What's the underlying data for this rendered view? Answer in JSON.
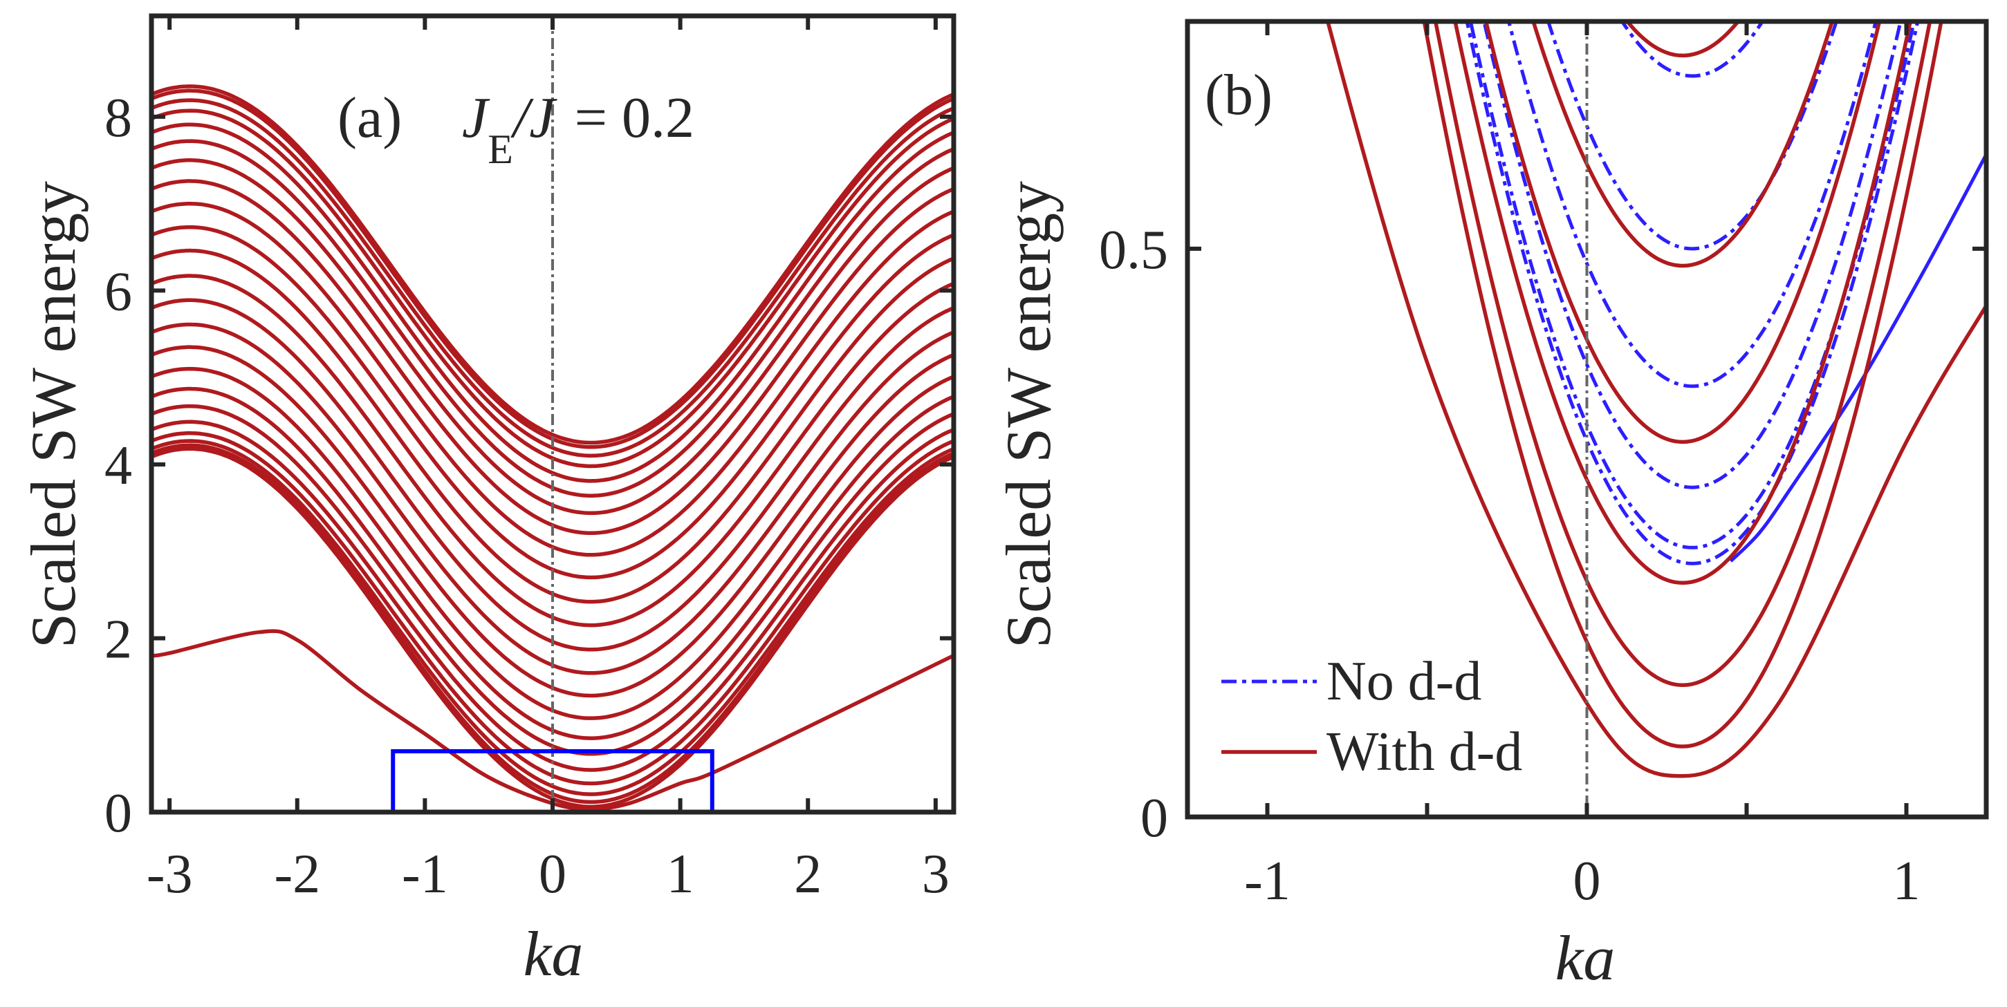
{
  "colors": {
    "with_dd": "#B01A1E",
    "no_dd": "#2B1FFF",
    "zoom_box": "#0000FF",
    "reference_line": "#666666",
    "axes": "#262626"
  },
  "chart_data": [
    {
      "type": "line",
      "panel_label": "(a)",
      "annotation": {
        "symbol": "J",
        "subscript": "E",
        "divider": "/J",
        "value": "= 0.2"
      },
      "xlabel": "ka",
      "ylabel": "Scaled SW energy",
      "xlim": [
        -3.1416,
        3.1416
      ],
      "ylim": [
        0,
        9.16
      ],
      "xticks": [
        -3,
        -2,
        -1,
        0,
        1,
        2,
        3
      ],
      "xtick_labels": [
        "-3",
        "-2",
        "-1",
        "0",
        "1",
        "2",
        "3"
      ],
      "yticks": [
        0,
        2,
        4,
        6,
        8
      ],
      "ytick_labels": [
        "0",
        "2",
        "4",
        "6",
        "8"
      ],
      "reference_line_k": 0,
      "zoom_box": {
        "k": [
          -1.25,
          1.25
        ],
        "energy": [
          0,
          0.7
        ]
      },
      "series": [
        {
          "name": "With d-d",
          "style": "solid",
          "model": "cosine band between min and max energy",
          "k_at_min": 0.3,
          "band_min_energy": [
            4.25,
            4.2,
            4.1,
            3.98,
            3.81,
            3.64,
            3.44,
            3.21,
            2.96,
            2.7,
            2.42,
            2.15,
            1.87,
            1.6,
            1.34,
            1.08,
            0.85,
            0.67,
            0.485,
            0.33,
            0.206,
            0.116,
            0.062
          ],
          "band_max_energy": [
            8.35,
            8.3,
            8.19,
            8.07,
            7.91,
            7.72,
            7.5,
            7.26,
            7.0,
            6.73,
            6.46,
            6.17,
            5.89,
            5.61,
            5.35,
            5.1,
            4.87,
            4.67,
            4.49,
            4.36,
            4.27,
            4.22,
            4.18
          ],
          "lower_band": [
            [
              -3.1416,
              1.8
            ],
            [
              -3,
              1.83
            ],
            [
              -2.3,
              2.07
            ],
            [
              -2,
              1.98
            ],
            [
              -1.5,
              1.4
            ],
            [
              -1,
              0.9
            ],
            [
              -0.5,
              0.4
            ],
            [
              0,
              0.1
            ],
            [
              0.3,
              0.036
            ],
            [
              0.6,
              0.1
            ],
            [
              1,
              0.33
            ],
            [
              1.25,
              0.45
            ],
            [
              2,
              0.98
            ],
            [
              3,
              1.7
            ],
            [
              3.1416,
              1.8
            ]
          ]
        }
      ]
    },
    {
      "type": "line",
      "panel_label": "(b)",
      "xlabel": "ka",
      "ylabel": "Scaled SW energy",
      "xlim": [
        -1.25,
        1.25
      ],
      "ylim": [
        0,
        0.7
      ],
      "xticks": [
        -1,
        -0.5,
        0,
        0.5,
        1
      ],
      "xtick_labels": [
        "-1",
        "",
        "0",
        "",
        "1"
      ],
      "yticks": [
        0,
        0.5
      ],
      "ytick_labels": [
        "0",
        "0.5"
      ],
      "reference_line_k": 0,
      "legend": {
        "placement": "bottom-left",
        "entries": [
          "No d-d",
          "With d-d"
        ]
      },
      "series": [
        {
          "name": "No d-d",
          "style": "dash-dot",
          "model": "cosine band between min and max energy",
          "k_at_min": 0.33,
          "band_min_energy": [
            0.223,
            0.237,
            0.29,
            0.379,
            0.5,
            0.652,
            0.82,
            1.0
          ],
          "band_max_energy": [
            4.22,
            4.24,
            4.29,
            4.38,
            4.5,
            4.65,
            4.82,
            5.0
          ],
          "lower_band": [
            [
              0.45,
              0.225
            ],
            [
              0.54,
              0.25
            ],
            [
              0.64,
              0.29
            ],
            [
              0.84,
              0.375
            ],
            [
              1.05,
              0.478
            ],
            [
              1.25,
              0.583
            ]
          ]
        },
        {
          "name": "With d-d",
          "style": "solid",
          "model": "cosine band between min and max energy",
          "k_at_min": 0.3,
          "band_min_energy": [
            1.08,
            0.85,
            0.67,
            0.485,
            0.33,
            0.206,
            0.116,
            0.062
          ],
          "band_max_energy": [
            5.1,
            4.87,
            4.67,
            4.49,
            4.36,
            4.27,
            4.22,
            4.18
          ],
          "lower_band": [
            [
              -1,
              0.9
            ],
            [
              -0.5,
              0.4
            ],
            [
              0,
              0.1
            ],
            [
              0.3,
              0.036
            ],
            [
              0.6,
              0.1
            ],
            [
              1,
              0.33
            ],
            [
              1.25,
              0.45
            ]
          ]
        }
      ]
    }
  ]
}
